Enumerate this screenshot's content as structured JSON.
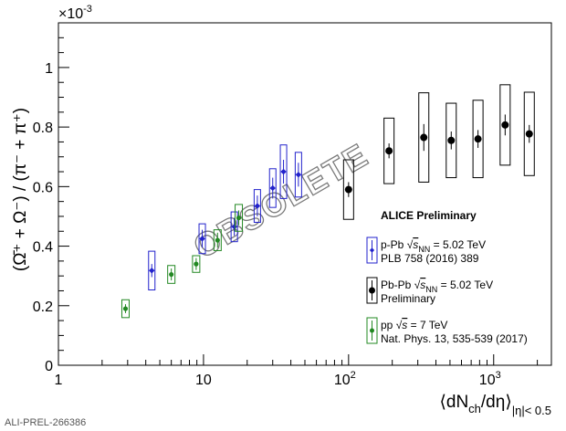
{
  "chart_data": {
    "type": "scatter",
    "title": "",
    "xlabel": {
      "text": "⟨dN",
      "sub1": "ch",
      "mid": "/dη⟩",
      "sub2": "|η|< 0.5"
    },
    "ylabel": "(Ω̄⁺ + Ω⁻) / (π⁻ + π⁺)",
    "y_exponent_label": "×10",
    "y_exponent_power": "-3",
    "x_scale": "log",
    "xlim": [
      1,
      2500
    ],
    "ylim": [
      0,
      0.00115
    ],
    "x_ticks": [
      {
        "value": 1,
        "label": "1"
      },
      {
        "value": 10,
        "label": "10"
      },
      {
        "value": 100,
        "label": "10",
        "sup": "2"
      },
      {
        "value": 1000,
        "label": "10",
        "sup": "3"
      }
    ],
    "y_ticks": [
      {
        "value": 0,
        "label": "0"
      },
      {
        "value": 0.0002,
        "label": "0.2"
      },
      {
        "value": 0.0004,
        "label": "0.4"
      },
      {
        "value": 0.0006,
        "label": "0.6"
      },
      {
        "value": 0.0008,
        "label": "0.8"
      },
      {
        "value": 0.001,
        "label": "1"
      }
    ],
    "grid": false,
    "legend_position": "right",
    "annotation_header": "ALICE Preliminary",
    "watermark": "OBSOLETE",
    "series": [
      {
        "name": "p-Pb √s_NN = 5.02 TeV",
        "legend_line1_prefix": "p-Pb ",
        "legend_line1_suffix": " = 5.02 TeV",
        "legend_sqrt_var": "s",
        "legend_sqrt_sub": "NN",
        "legend_line2": "PLB 758 (2016) 389",
        "color": "#2222cc",
        "marker": "diamond",
        "points": [
          {
            "x": 4.4,
            "y": 0.000318,
            "stat": 2.2e-05,
            "sys": 6.5e-05
          },
          {
            "x": 9.8,
            "y": 0.000425,
            "stat": 3e-05,
            "sys": 5e-05
          },
          {
            "x": 16.3,
            "y": 0.000465,
            "stat": 3e-05,
            "sys": 5e-05
          },
          {
            "x": 23.5,
            "y": 0.000535,
            "stat": 3.5e-05,
            "sys": 5.5e-05
          },
          {
            "x": 30.0,
            "y": 0.000595,
            "stat": 3.5e-05,
            "sys": 6.5e-05
          },
          {
            "x": 35.6,
            "y": 0.00065,
            "stat": 4e-05,
            "sys": 9e-05
          },
          {
            "x": 45.1,
            "y": 0.00064,
            "stat": 4e-05,
            "sys": 7.5e-05
          }
        ]
      },
      {
        "name": "Pb-Pb √s_NN = 5.02 TeV",
        "legend_line1_prefix": "Pb-Pb ",
        "legend_line1_suffix": " = 5.02 TeV",
        "legend_sqrt_var": "s",
        "legend_sqrt_sub": "NN",
        "legend_line2": "Preliminary",
        "color": "#000000",
        "marker": "circle",
        "points": [
          {
            "x": 100,
            "y": 0.00059,
            "stat": 2.5e-05,
            "sys": 0.0001
          },
          {
            "x": 190,
            "y": 0.00072,
            "stat": 2.5e-05,
            "sys": 0.00011
          },
          {
            "x": 330,
            "y": 0.000765,
            "stat": 4.5e-05,
            "sys": 0.00015
          },
          {
            "x": 510,
            "y": 0.000755,
            "stat": 3e-05,
            "sys": 0.000125
          },
          {
            "x": 780,
            "y": 0.00076,
            "stat": 3e-05,
            "sys": 0.00013
          },
          {
            "x": 1200,
            "y": 0.000807,
            "stat": 3.5e-05,
            "sys": 0.000135
          },
          {
            "x": 1760,
            "y": 0.000777,
            "stat": 3e-05,
            "sys": 0.00014
          }
        ]
      },
      {
        "name": "pp √s = 7 TeV",
        "legend_line1_prefix": "pp ",
        "legend_line1_suffix": " = 7 TeV",
        "legend_sqrt_var": "s",
        "legend_sqrt_sub": "",
        "legend_line2": "Nat. Phys. 13, 535-539 (2017)",
        "color": "#228822",
        "marker": "circle-small",
        "points": [
          {
            "x": 2.9,
            "y": 0.00019,
            "stat": 1.5e-05,
            "sys": 3e-05
          },
          {
            "x": 6.0,
            "y": 0.000305,
            "stat": 2e-05,
            "sys": 3e-05
          },
          {
            "x": 8.9,
            "y": 0.00034,
            "stat": 2e-05,
            "sys": 2.8e-05
          },
          {
            "x": 12.5,
            "y": 0.00042,
            "stat": 2.5e-05,
            "sys": 3.5e-05
          },
          {
            "x": 17.5,
            "y": 0.000495,
            "stat": 2.5e-05,
            "sys": 4.5e-05
          }
        ]
      }
    ]
  },
  "footer": {
    "label": "ALI-PREL-266386"
  }
}
